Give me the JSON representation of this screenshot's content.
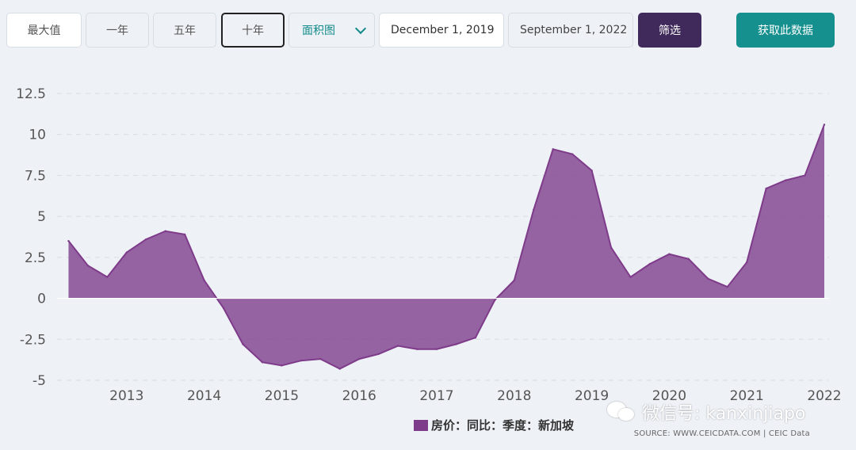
{
  "toolbar": {
    "range_buttons": [
      "最大值",
      "一年",
      "五年",
      "十年"
    ],
    "active_range": "十年",
    "chart_type_select": "面积图",
    "date_start": "December 1, 2019",
    "date_end": "September 1, 2022",
    "filter_label": "筛选",
    "get_data_label": "获取此数据",
    "colors": {
      "filter_button": "#3f2a5b",
      "data_button": "#15908f"
    }
  },
  "legend": {
    "label": "房价：同比：季度：新加坡",
    "color": "#7e3b8a"
  },
  "source": "SOURCE: WWW.CEICDATA.COM | CEIC Data",
  "watermark": "微信号: kanxinjiapo",
  "chart_data": {
    "type": "area",
    "x_ticks": [
      "2013",
      "2014",
      "2015",
      "2016",
      "2017",
      "2018",
      "2019",
      "2020",
      "2021",
      "2022"
    ],
    "y_ticks": [
      "12.5",
      "10",
      "7.5",
      "5",
      "2.5",
      "0",
      "-2.5",
      "-5"
    ],
    "ylim": [
      -5,
      12.5
    ],
    "xlim": [
      2012.0,
      2022.0
    ],
    "grid": "horizontal dashed",
    "series": [
      {
        "name": "房价：同比：季度：新加坡",
        "color": "#7e3b8a",
        "x": [
          2012.25,
          2012.5,
          2012.75,
          2013.0,
          2013.25,
          2013.5,
          2013.75,
          2014.0,
          2014.25,
          2014.5,
          2014.75,
          2015.0,
          2015.25,
          2015.5,
          2015.75,
          2016.0,
          2016.25,
          2016.5,
          2016.75,
          2017.0,
          2017.25,
          2017.5,
          2017.75,
          2018.0,
          2018.25,
          2018.5,
          2018.75,
          2019.0,
          2019.25,
          2019.5,
          2019.75,
          2020.0,
          2020.25,
          2020.5,
          2020.75,
          2021.0,
          2021.25,
          2021.5,
          2021.75,
          2022.0
        ],
        "values": [
          3.5,
          2.0,
          1.3,
          2.8,
          3.6,
          4.1,
          3.9,
          1.1,
          -0.6,
          -2.8,
          -3.9,
          -4.1,
          -3.8,
          -3.7,
          -4.3,
          -3.7,
          -3.4,
          -2.9,
          -3.1,
          -3.1,
          -2.8,
          -2.4,
          -0.1,
          1.1,
          5.4,
          9.1,
          8.8,
          7.8,
          3.1,
          1.3,
          2.1,
          2.7,
          2.4,
          1.2,
          0.7,
          2.2,
          6.7,
          7.2,
          7.5,
          10.6
        ]
      }
    ]
  }
}
